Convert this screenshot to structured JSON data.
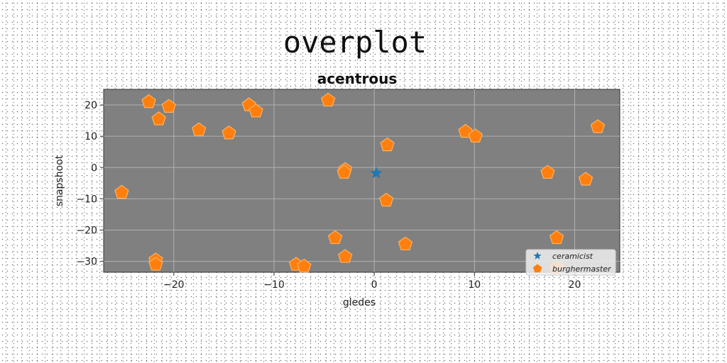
{
  "figure_title": "overplot",
  "chart_data": {
    "type": "scatter",
    "title": "acentrous",
    "xlabel": "gledes",
    "ylabel": "snapshoot",
    "xlim": [
      -27,
      24.5
    ],
    "ylim": [
      -33.5,
      25
    ],
    "xticks": [
      -20,
      -10,
      0,
      10,
      20
    ],
    "yticks": [
      -30,
      -20,
      -10,
      0,
      10,
      20
    ],
    "xtick_labels": [
      "−20",
      "−10",
      "0",
      "10",
      "20"
    ],
    "ytick_labels": [
      "−30",
      "−20",
      "−10",
      "0",
      "10",
      "20"
    ],
    "grid": true,
    "legend_position": "lower-right",
    "background_color": "#808080",
    "series": [
      {
        "name": "ceramicist",
        "marker": "star",
        "color": "#1f77b4",
        "points": [
          [
            0.2,
            -1.8
          ]
        ]
      },
      {
        "name": "burghermaster",
        "marker": "pentagon",
        "color": "#ff7f0e",
        "points": [
          [
            -22.5,
            21
          ],
          [
            -20.5,
            19.5
          ],
          [
            -21.5,
            15.5
          ],
          [
            -17.5,
            12
          ],
          [
            -14.5,
            11
          ],
          [
            -12.5,
            20
          ],
          [
            -11.8,
            18
          ],
          [
            -4.6,
            21.5
          ],
          [
            1.3,
            7.2
          ],
          [
            9.1,
            11.5
          ],
          [
            10.1,
            10
          ],
          [
            22.3,
            13
          ],
          [
            -2.9,
            -0.7
          ],
          [
            -3,
            -1.6
          ],
          [
            17.3,
            -1.6
          ],
          [
            21.1,
            -3.8
          ],
          [
            -25.2,
            -8
          ],
          [
            1.2,
            -10.5
          ],
          [
            -3.9,
            -22.5
          ],
          [
            18.2,
            -22.5
          ],
          [
            3.1,
            -24.5
          ],
          [
            -2.9,
            -28.5
          ],
          [
            -21.8,
            -29.6
          ],
          [
            -21.8,
            -31
          ],
          [
            -7.8,
            -31
          ],
          [
            -7,
            -31.6
          ],
          [
            18.2,
            -32
          ]
        ]
      }
    ]
  }
}
